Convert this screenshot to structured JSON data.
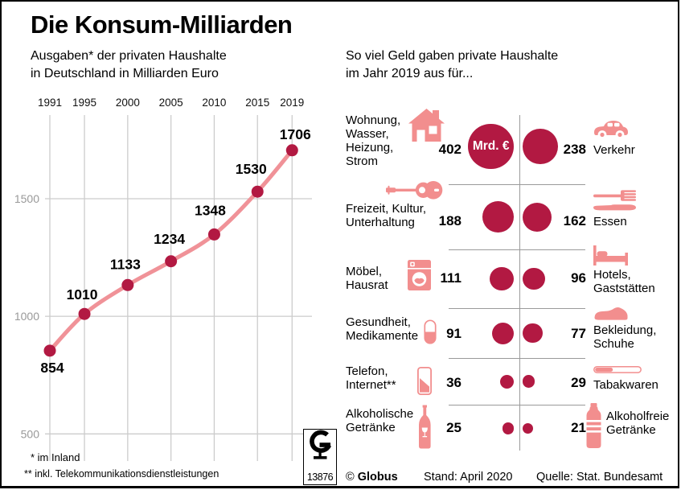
{
  "title": "Die Konsum-Milliarden",
  "left_panel": {
    "subtitle": "Ausgaben* der privaten Haushalte\nin Deutschland in Milliarden Euro",
    "footnote1": "* im Inland",
    "footnote2": "** inkl. Telekommunikationsdienstleistungen"
  },
  "chart_data": {
    "type": "line",
    "title": "Ausgaben der privaten Haushalte in Deutschland in Milliarden Euro",
    "x": [
      1991,
      1995,
      2000,
      2005,
      2010,
      2015,
      2019
    ],
    "xticks": [
      "1991",
      "1995",
      "2000",
      "2005",
      "2010",
      "2015",
      "2019"
    ],
    "values": [
      854,
      1010,
      1133,
      1234,
      1348,
      1530,
      1706
    ],
    "point_labels": [
      "854",
      "1010",
      "1133",
      "1234",
      "1348",
      "1530",
      "1706"
    ],
    "yticks": [
      500,
      1000,
      1500
    ],
    "ylim": [
      450,
      1810
    ],
    "grid": true,
    "legend": "none",
    "line_color": "#f09298",
    "point_color": "#b21942",
    "grid_color": "#cccccc",
    "axis_label_color": "#999999",
    "label_color": "#000000"
  },
  "right_panel": {
    "subtitle": "So viel Geld gaben private Haushalte\nim Jahr 2019 aus für...",
    "unit_label": "Mrd. €",
    "rows": [
      {
        "left": {
          "label": "Wohnung,\nWasser,\nHeizung,\nStrom",
          "icon": "house-icon",
          "value": 402
        },
        "right": {
          "label": "Verkehr",
          "icon": "car-icon",
          "value": 238
        }
      },
      {
        "left": {
          "label": "Freizeit, Kultur,\nUnterhaltung",
          "icon": "guitar-icon",
          "value": 188
        },
        "right": {
          "label": "Essen",
          "icon": "cutlery-icon",
          "value": 162
        }
      },
      {
        "left": {
          "label": "Möbel,\nHausrat",
          "icon": "washing-machine-icon",
          "value": 111
        },
        "right": {
          "label": "Hotels,\nGaststätten",
          "icon": "bed-icon",
          "value": 96
        }
      },
      {
        "left": {
          "label": "Gesundheit,\nMedikamente",
          "icon": "pill-icon",
          "value": 91
        },
        "right": {
          "label": "Bekleidung,\nSchuhe",
          "icon": "shoe-icon",
          "value": 77
        }
      },
      {
        "left": {
          "label": "Telefon,\nInternet**",
          "icon": "smartphone-icon",
          "value": 36
        },
        "right": {
          "label": "Tabakwaren",
          "icon": "cigarette-icon",
          "value": 29
        }
      },
      {
        "left": {
          "label": "Alkoholische\nGetränke",
          "icon": "wine-bottle-icon",
          "value": 25
        },
        "right": {
          "label": "Alkoholfreie\nGetränke",
          "icon": "water-bottle-icon",
          "value": 21
        }
      }
    ]
  },
  "footer": {
    "copyright": "©",
    "brand": "Globus",
    "stand": "Stand: April 2020",
    "source": "Quelle: Stat. Bundesamt",
    "logo_letter": "G",
    "logo_number": "13876"
  },
  "colors": {
    "crimson": "#b21942",
    "pink": "#f28e8e",
    "line": "#f09298",
    "divider": "#9a9a9a",
    "grid": "#cccccc",
    "axis_label": "#999999"
  }
}
